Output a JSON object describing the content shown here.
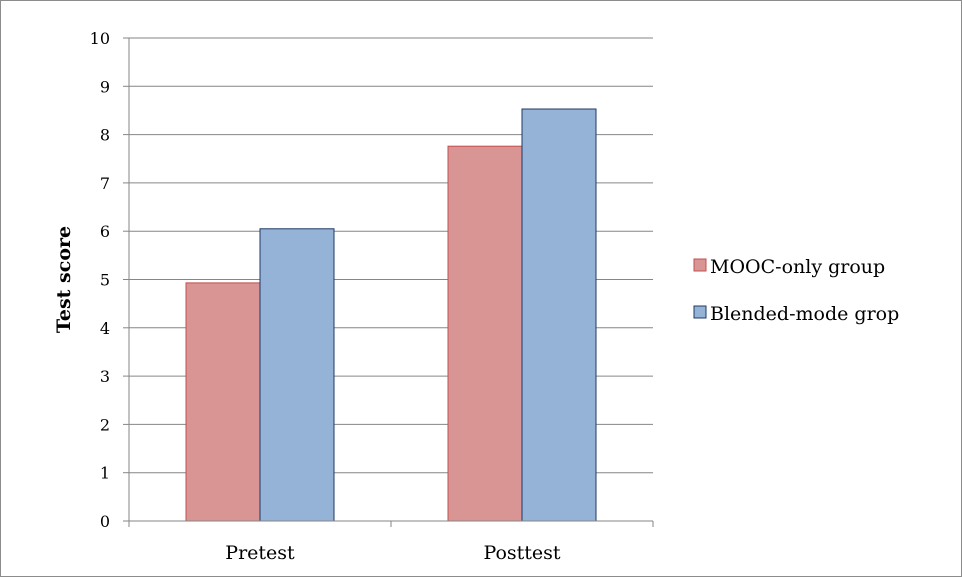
{
  "chart_data": {
    "type": "bar",
    "categories": [
      "Pretest",
      "Posttest"
    ],
    "series": [
      {
        "name": "MOOC-only group",
        "values": [
          4.93,
          7.76
        ],
        "color": "#d99594",
        "stroke": "#c0504d"
      },
      {
        "name": "Blended-mode grop",
        "values": [
          6.05,
          8.53
        ],
        "color": "#95b3d7",
        "stroke": "#1f3864"
      }
    ],
    "ylabel": "Test score",
    "xlabel": "",
    "ylim": [
      0,
      10
    ],
    "yticks": [
      0,
      1,
      2,
      3,
      4,
      5,
      6,
      7,
      8,
      9,
      10
    ],
    "grid": true,
    "legend_position": "right"
  }
}
